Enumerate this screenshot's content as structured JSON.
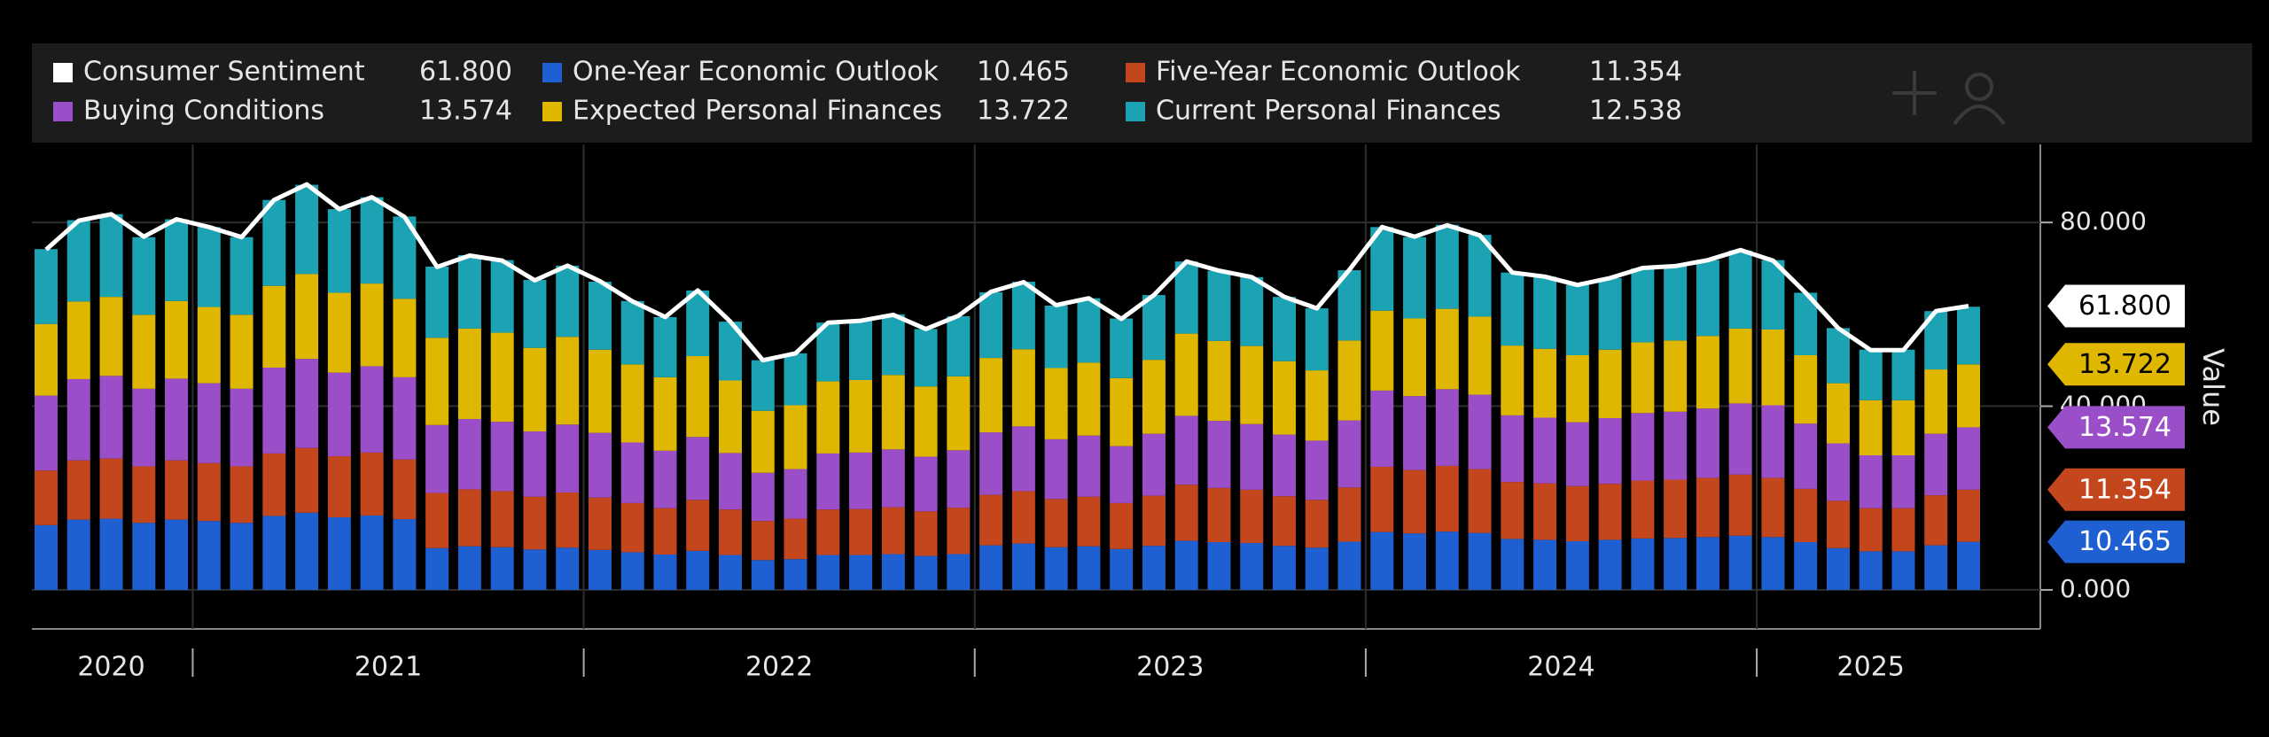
{
  "chart_data": {
    "type": "bar",
    "stacked": true,
    "y_label": "Value",
    "categories": [
      "2020",
      null,
      null,
      null,
      null,
      "2021",
      null,
      null,
      null,
      null,
      null,
      null,
      null,
      null,
      null,
      null,
      null,
      "2022",
      null,
      null,
      null,
      null,
      null,
      null,
      null,
      null,
      null,
      null,
      null,
      "2023",
      null,
      null,
      null,
      null,
      null,
      null,
      null,
      null,
      null,
      null,
      null,
      "2024",
      null,
      null,
      null,
      null,
      null,
      null,
      null,
      null,
      null,
      null,
      null,
      "2025",
      null,
      null,
      null,
      null,
      null,
      null
    ],
    "ylim": [
      -8.5,
      97
    ],
    "yticks": [
      {
        "value": 0,
        "label": "0.000"
      },
      {
        "value": 40,
        "label": "40.000"
      },
      {
        "value": 80,
        "label": "80.000"
      }
    ],
    "grid": true,
    "series": [
      {
        "name": "Consumer Sentiment",
        "type": "line",
        "color": "#ffffff",
        "last_label": "61.800",
        "tag": true,
        "values": [
          74.1,
          80.4,
          81.8,
          76.9,
          80.7,
          79.0,
          76.8,
          84.9,
          88.3,
          82.9,
          85.5,
          81.2,
          70.3,
          72.8,
          71.7,
          67.4,
          70.6,
          67.2,
          62.8,
          59.4,
          65.2,
          58.4,
          50.0,
          51.5,
          58.2,
          58.6,
          59.9,
          56.8,
          59.7,
          64.9,
          67.0,
          62.0,
          63.5,
          59.0,
          64.2,
          71.5,
          69.5,
          68.1,
          63.8,
          61.3,
          69.7,
          79.0,
          76.9,
          79.4,
          77.2,
          69.1,
          68.2,
          66.4,
          67.9,
          70.1,
          70.5,
          71.8,
          74.0,
          71.7,
          64.7,
          57.0,
          52.2,
          52.2,
          60.7,
          61.8
        ]
      },
      {
        "name": "One-Year Economic Outlook",
        "type": "bar",
        "color": "#1e5fd2",
        "last_label": "10.465",
        "tag": true,
        "values": [
          14.1,
          15.3,
          15.5,
          14.6,
          15.3,
          15.0,
          14.6,
          16.1,
          16.8,
          15.8,
          16.2,
          15.4,
          9.1,
          9.5,
          9.3,
          8.8,
          9.2,
          8.7,
          8.2,
          7.7,
          8.5,
          7.6,
          6.5,
          6.7,
          7.6,
          7.6,
          7.8,
          7.4,
          7.8,
          9.7,
          10.1,
          9.3,
          9.5,
          8.9,
          9.6,
          10.7,
          10.4,
          10.2,
          9.6,
          9.2,
          10.5,
          12.6,
          12.3,
          12.7,
          12.4,
          11.1,
          10.9,
          10.6,
          10.9,
          11.2,
          11.3,
          11.5,
          11.8,
          11.5,
          10.4,
          9.1,
          8.4,
          8.4,
          9.7,
          10.465
        ]
      },
      {
        "name": "Five-Year Economic Outlook",
        "type": "bar",
        "color": "#c4461c",
        "last_label": "11.354",
        "tag": true,
        "values": [
          11.9,
          12.9,
          13.1,
          12.3,
          12.9,
          12.6,
          12.3,
          13.6,
          14.1,
          13.3,
          13.7,
          13.0,
          12.0,
          12.4,
          12.2,
          11.5,
          12.0,
          11.4,
          10.7,
          10.1,
          11.1,
          9.9,
          8.5,
          8.8,
          9.9,
          10.0,
          10.2,
          9.7,
          10.1,
          11.0,
          11.4,
          10.5,
          10.8,
          10.0,
          10.9,
          12.2,
          11.8,
          11.6,
          10.8,
          10.4,
          11.8,
          14.2,
          13.8,
          14.3,
          13.9,
          12.4,
          12.3,
          12.0,
          12.2,
          12.6,
          12.7,
          12.9,
          13.3,
          12.9,
          11.6,
          10.3,
          9.4,
          9.4,
          10.9,
          11.354
        ]
      },
      {
        "name": "Buying Conditions",
        "type": "bar",
        "color": "#9a4fc8",
        "last_label": "13.574",
        "tag": true,
        "values": [
          16.3,
          17.7,
          18.0,
          16.9,
          17.8,
          17.4,
          16.9,
          18.7,
          19.4,
          18.2,
          18.8,
          17.9,
          14.8,
          15.3,
          15.1,
          14.2,
          14.8,
          14.1,
          13.2,
          12.5,
          13.7,
          12.3,
          10.5,
          10.8,
          12.2,
          12.3,
          12.6,
          11.9,
          12.5,
          13.6,
          14.1,
          13.0,
          13.3,
          12.4,
          13.5,
          15.0,
          14.6,
          14.3,
          13.4,
          12.9,
          14.6,
          16.6,
          16.1,
          16.7,
          16.2,
          14.5,
          14.3,
          13.9,
          14.3,
          14.7,
          14.8,
          15.1,
          15.5,
          15.8,
          14.2,
          12.5,
          11.5,
          11.5,
          13.4,
          13.574
        ]
      },
      {
        "name": "Expected Personal Finances",
        "type": "bar",
        "color": "#e0b700",
        "last_label": "13.722",
        "tag": true,
        "values": [
          15.6,
          16.9,
          17.2,
          16.1,
          16.9,
          16.6,
          16.1,
          17.8,
          18.5,
          17.4,
          18.0,
          17.1,
          19.0,
          19.7,
          19.4,
          18.2,
          19.1,
          18.1,
          17.0,
          16.0,
          17.6,
          15.8,
          13.5,
          13.9,
          15.7,
          15.8,
          16.2,
          15.3,
          16.1,
          16.2,
          16.8,
          15.5,
          15.9,
          14.8,
          16.1,
          17.9,
          17.4,
          17.0,
          16.0,
          15.3,
          17.4,
          17.4,
          16.9,
          17.5,
          17.0,
          15.2,
          15.0,
          14.6,
          14.9,
          15.4,
          15.5,
          15.8,
          16.3,
          16.5,
          14.9,
          13.1,
          12.0,
          12.0,
          14.0,
          13.722
        ]
      },
      {
        "name": "Current Personal Finances",
        "type": "bar",
        "color": "#1ba3b3",
        "last_label": "12.538",
        "tag": false,
        "values": [
          16.3,
          17.7,
          18.0,
          16.9,
          17.8,
          17.4,
          16.9,
          18.7,
          19.4,
          18.2,
          18.8,
          17.9,
          15.5,
          16.0,
          15.8,
          14.8,
          15.5,
          14.8,
          13.8,
          13.1,
          14.3,
          12.8,
          11.0,
          11.3,
          12.8,
          12.9,
          13.2,
          12.5,
          13.1,
          14.3,
          14.7,
          13.6,
          14.0,
          13.0,
          14.1,
          15.7,
          15.3,
          15.0,
          14.0,
          13.5,
          15.3,
          18.2,
          17.7,
          18.3,
          17.8,
          15.9,
          15.7,
          15.3,
          15.6,
          16.1,
          16.2,
          16.5,
          17.0,
          15.1,
          13.6,
          12.0,
          11.0,
          11.0,
          12.7,
          12.538
        ]
      }
    ]
  }
}
